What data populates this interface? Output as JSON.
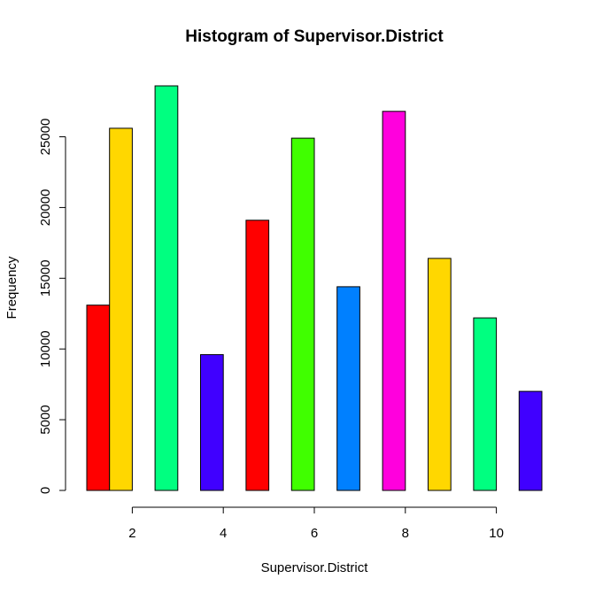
{
  "chart_data": {
    "type": "bar",
    "title": "Histogram of Supervisor.District",
    "xlabel": "Supervisor.District",
    "ylabel": "Frequency",
    "x_ticks": [
      2,
      4,
      6,
      8,
      10
    ],
    "y_ticks": [
      0,
      5000,
      10000,
      15000,
      20000,
      25000
    ],
    "xlim": [
      1,
      11
    ],
    "ylim": [
      0,
      28600
    ],
    "bins": [
      {
        "x0": 1.0,
        "x1": 1.5,
        "value": 13100,
        "color": "#FF0000"
      },
      {
        "x0": 1.5,
        "x1": 2.0,
        "value": 25600,
        "color": "#FFD700"
      },
      {
        "x0": 2.5,
        "x1": 3.0,
        "value": 28600,
        "color": "#00FF80"
      },
      {
        "x0": 3.5,
        "x1": 4.0,
        "value": 9600,
        "color": "#4000FF"
      },
      {
        "x0": 4.5,
        "x1": 5.0,
        "value": 19100,
        "color": "#FF0000"
      },
      {
        "x0": 5.5,
        "x1": 6.0,
        "value": 24900,
        "color": "#40FF00"
      },
      {
        "x0": 6.5,
        "x1": 7.0,
        "value": 14400,
        "color": "#0080FF"
      },
      {
        "x0": 7.5,
        "x1": 8.0,
        "value": 26800,
        "color": "#FF00DD"
      },
      {
        "x0": 8.5,
        "x1": 9.0,
        "value": 16400,
        "color": "#FFD700"
      },
      {
        "x0": 9.5,
        "x1": 10.0,
        "value": 12200,
        "color": "#00FF80"
      },
      {
        "x0": 10.5,
        "x1": 11.0,
        "value": 7000,
        "color": "#4000FF"
      }
    ]
  }
}
